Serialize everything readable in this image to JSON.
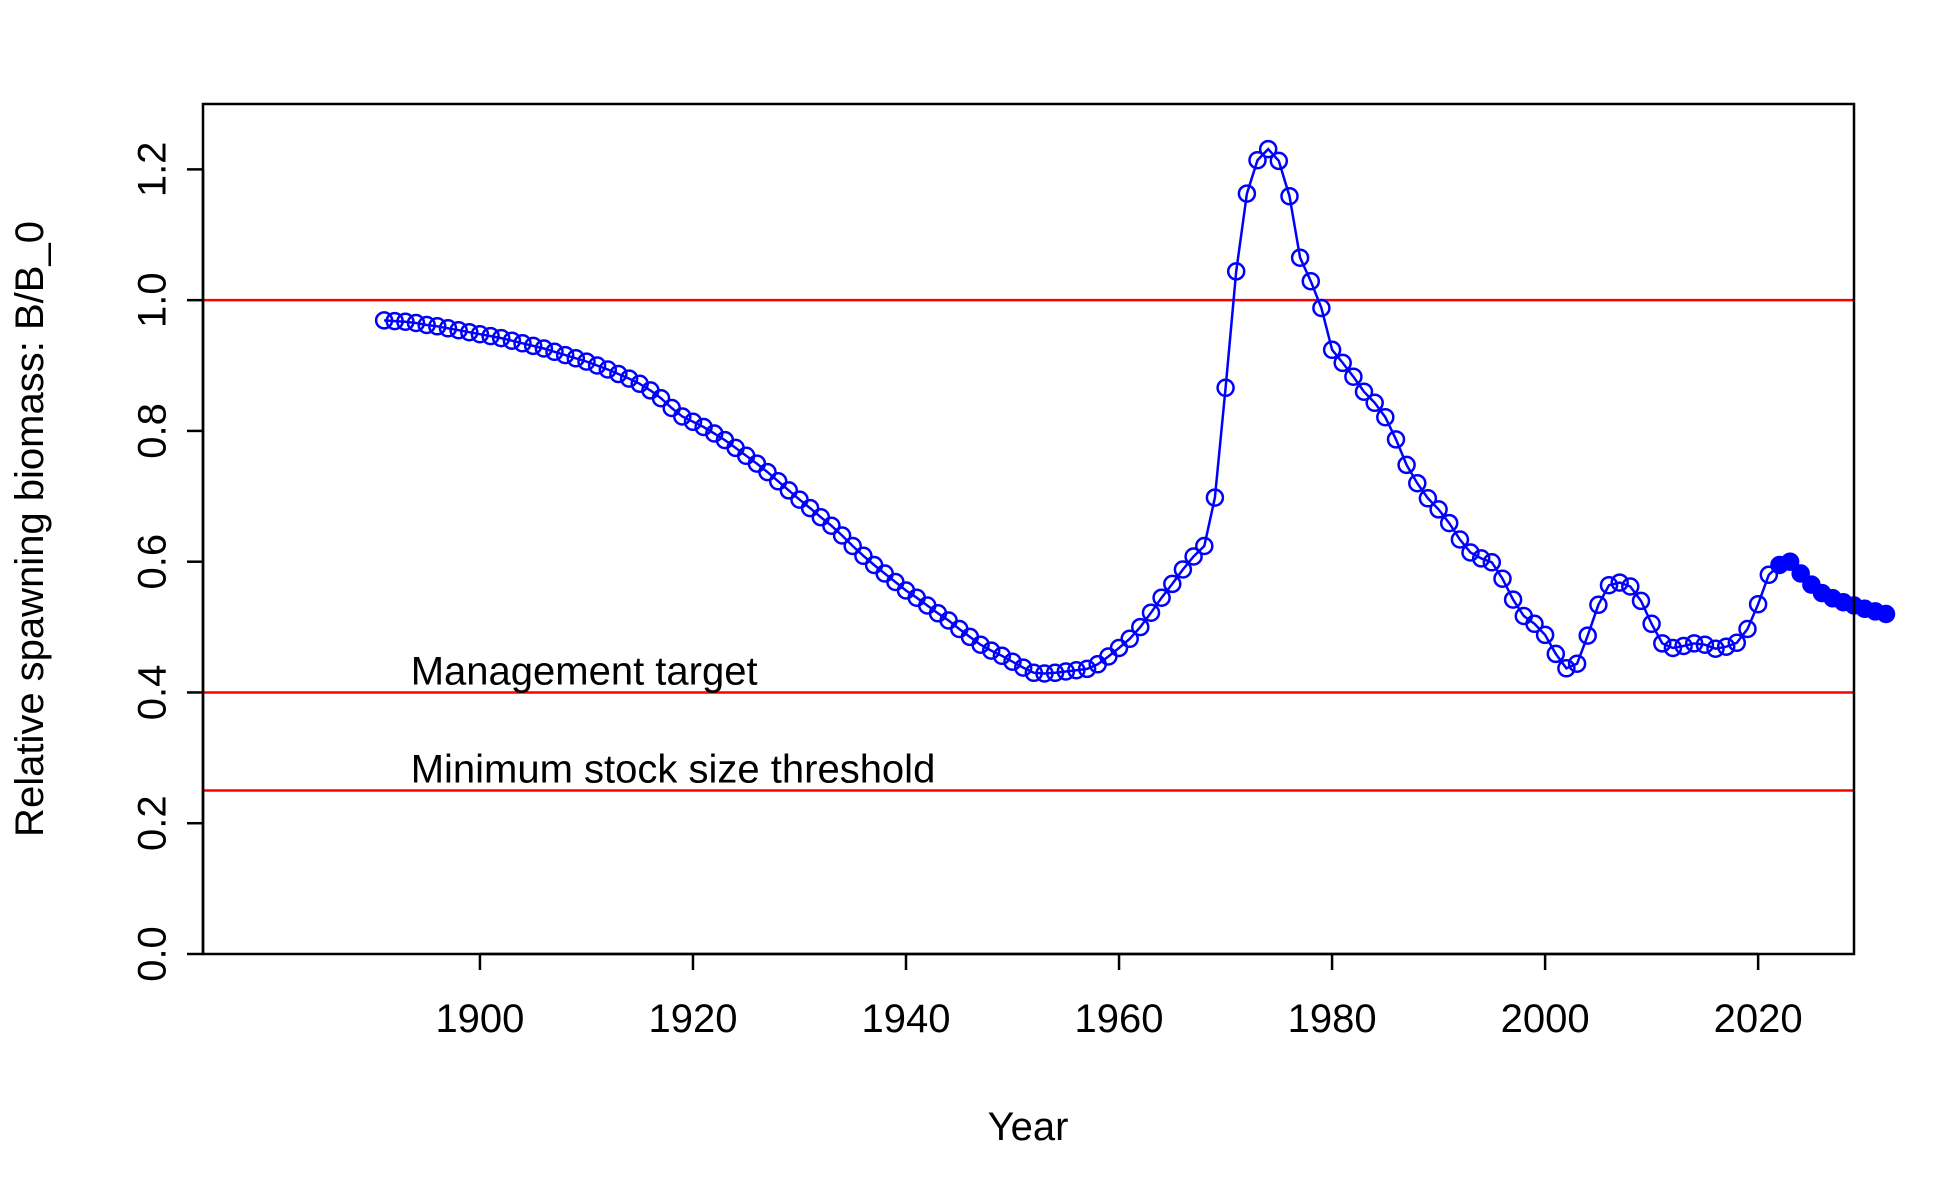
{
  "chart_data": {
    "type": "line",
    "title": "",
    "xlabel": "Year",
    "ylabel": "Relative spawning biomass: B/B_0",
    "xlim": [
      1874,
      2029
    ],
    "ylim": [
      0.0,
      1.3
    ],
    "x_ticks": [
      "1900",
      "1920",
      "1940",
      "1960",
      "1980",
      "2000",
      "2020"
    ],
    "y_ticks": [
      "0.0",
      "0.2",
      "0.4",
      "0.6",
      "0.8",
      "1.0",
      "1.2"
    ],
    "grid": false,
    "legend": "none",
    "reference_lines": [
      {
        "y": 1.0,
        "label": "",
        "color": "#ff0000"
      },
      {
        "y": 0.4,
        "label": "Management target",
        "color": "#ff0000"
      },
      {
        "y": 0.25,
        "label": "Minimum stock size threshold",
        "color": "#ff0000"
      }
    ],
    "series": [
      {
        "color": "#0000ff",
        "marker": "open-circle",
        "x": [
          1891,
          1892,
          1893,
          1894,
          1895,
          1896,
          1897,
          1898,
          1899,
          1900,
          1901,
          1902,
          1903,
          1904,
          1905,
          1906,
          1907,
          1908,
          1909,
          1910,
          1911,
          1912,
          1913,
          1914,
          1915,
          1916,
          1917,
          1918,
          1919,
          1920,
          1921,
          1922,
          1923,
          1924,
          1925,
          1926,
          1927,
          1928,
          1929,
          1930,
          1931,
          1932,
          1933,
          1934,
          1935,
          1936,
          1937,
          1938,
          1939,
          1940,
          1941,
          1942,
          1943,
          1944,
          1945,
          1946,
          1947,
          1948,
          1949,
          1950,
          1951,
          1952,
          1953,
          1954,
          1955,
          1956,
          1957,
          1958,
          1959,
          1960,
          1961,
          1962,
          1963,
          1964,
          1965,
          1966,
          1967,
          1968,
          1969,
          1970,
          1971,
          1972,
          1973,
          1974,
          1975,
          1976,
          1977,
          1978,
          1979,
          1980,
          1981,
          1982,
          1983,
          1984,
          1985,
          1986,
          1987,
          1988,
          1989,
          1990,
          1991,
          1992,
          1993,
          1994,
          1995,
          1996,
          1997,
          1998,
          1999,
          2000,
          2001,
          2002,
          2003,
          2004,
          2005,
          2006,
          2007,
          2008,
          2009,
          2010,
          2011,
          2012,
          2013,
          2014,
          2015,
          2016,
          2017,
          2018,
          2019,
          2020,
          2021
        ],
        "y": [
          0.969,
          0.968,
          0.967,
          0.965,
          0.962,
          0.96,
          0.957,
          0.954,
          0.951,
          0.948,
          0.945,
          0.942,
          0.938,
          0.934,
          0.93,
          0.926,
          0.921,
          0.916,
          0.911,
          0.906,
          0.9,
          0.894,
          0.887,
          0.88,
          0.872,
          0.862,
          0.85,
          0.835,
          0.822,
          0.814,
          0.806,
          0.796,
          0.786,
          0.774,
          0.762,
          0.75,
          0.737,
          0.723,
          0.709,
          0.695,
          0.682,
          0.668,
          0.655,
          0.64,
          0.624,
          0.609,
          0.595,
          0.582,
          0.569,
          0.556,
          0.545,
          0.533,
          0.521,
          0.51,
          0.497,
          0.485,
          0.473,
          0.464,
          0.456,
          0.447,
          0.438,
          0.43,
          0.429,
          0.43,
          0.432,
          0.434,
          0.436,
          0.443,
          0.455,
          0.468,
          0.482,
          0.5,
          0.522,
          0.545,
          0.566,
          0.588,
          0.608,
          0.624,
          0.698,
          0.866,
          1.044,
          1.163,
          1.214,
          1.231,
          1.213,
          1.159,
          1.065,
          1.029,
          0.988,
          0.924,
          0.904,
          0.883,
          0.86,
          0.843,
          0.821,
          0.787,
          0.748,
          0.72,
          0.697,
          0.68,
          0.659,
          0.634,
          0.614,
          0.605,
          0.599,
          0.574,
          0.542,
          0.517,
          0.505,
          0.488,
          0.459,
          0.437,
          0.444,
          0.487,
          0.534,
          0.564,
          0.568,
          0.562,
          0.54,
          0.505,
          0.475,
          0.468,
          0.471,
          0.475,
          0.473,
          0.467,
          0.47,
          0.476,
          0.497,
          0.535,
          0.58
        ]
      },
      {
        "color": "#0000ff",
        "marker": "filled-circle",
        "x": [
          2022,
          2023,
          2024,
          2025,
          2026,
          2027,
          2028,
          2029,
          2030,
          2031,
          2032
        ],
        "y": [
          0.595,
          0.6,
          0.582,
          0.565,
          0.552,
          0.544,
          0.538,
          0.533,
          0.528,
          0.524,
          0.52
        ]
      }
    ]
  }
}
